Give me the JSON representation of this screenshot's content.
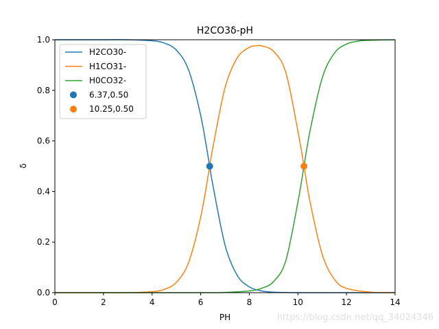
{
  "chart_data": {
    "type": "line",
    "title": "H2CO3δ-pH",
    "xlabel": "PH",
    "ylabel": "δ",
    "xlim": [
      0,
      14
    ],
    "ylim": [
      0,
      1
    ],
    "xticks": [
      0,
      2,
      4,
      6,
      8,
      10,
      12,
      14
    ],
    "yticks": [
      0.0,
      0.2,
      0.4,
      0.6,
      0.8,
      1.0
    ],
    "ytick_labels": [
      "0.0",
      "0.2",
      "0.4",
      "0.6",
      "0.8",
      "1.0"
    ],
    "grid": false,
    "legend_position": "top-left",
    "pKa": [
      6.37,
      10.25
    ],
    "series": [
      {
        "name": "H2CO30-",
        "color": "#1f77b4",
        "x": [
          0,
          2,
          3,
          4,
          4.5,
          5,
          5.5,
          6,
          6.37,
          6.5,
          7,
          7.5,
          8,
          8.5,
          9,
          10,
          11,
          12,
          14
        ],
        "y": [
          1.0,
          1.0,
          1.0,
          0.996,
          0.987,
          0.959,
          0.881,
          0.701,
          0.5,
          0.426,
          0.189,
          0.069,
          0.023,
          0.007,
          0.002,
          0.0,
          0.0,
          0.0,
          0.0
        ]
      },
      {
        "name": "H1CO31-",
        "color": "#ff7f0e",
        "x": [
          0,
          2,
          3,
          4,
          4.5,
          5,
          5.5,
          6,
          6.37,
          6.5,
          7,
          7.5,
          8,
          8.3,
          8.5,
          9,
          9.5,
          10,
          10.25,
          10.5,
          11,
          11.5,
          12,
          13,
          14
        ],
        "y": [
          0.0,
          0.0,
          0.0,
          0.004,
          0.013,
          0.041,
          0.119,
          0.299,
          0.5,
          0.574,
          0.81,
          0.928,
          0.97,
          0.976,
          0.976,
          0.954,
          0.871,
          0.639,
          0.5,
          0.359,
          0.151,
          0.053,
          0.017,
          0.002,
          0.0
        ]
      },
      {
        "name": "H0CO32-",
        "color": "#2ca02c",
        "x": [
          0,
          6,
          7,
          8,
          8.5,
          9,
          9.5,
          10,
          10.25,
          10.5,
          11,
          11.5,
          12,
          12.5,
          13,
          14
        ],
        "y": [
          0.0,
          0.0,
          0.001,
          0.007,
          0.017,
          0.044,
          0.126,
          0.358,
          0.5,
          0.64,
          0.849,
          0.947,
          0.983,
          0.995,
          0.998,
          1.0
        ]
      }
    ],
    "points": [
      {
        "name": "6.37,0.50",
        "x": 6.37,
        "y": 0.5,
        "color": "#1f77b4"
      },
      {
        "name": "10.25,0.50",
        "x": 10.25,
        "y": 0.5,
        "color": "#ff7f0e"
      }
    ]
  },
  "watermark": "https://blog.csdn.net/qq_34024346"
}
